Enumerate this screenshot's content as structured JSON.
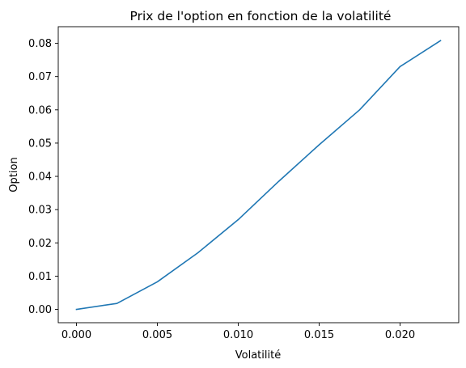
{
  "chart_data": {
    "type": "line",
    "title": "Prix de l'option en fonction de la volatilité",
    "xlabel": "Volatilité",
    "ylabel": "Option",
    "xlim": [
      -0.001125,
      0.023625
    ],
    "ylim": [
      -0.004,
      0.085
    ],
    "xticks": [
      "0.000",
      "0.005",
      "0.010",
      "0.015",
      "0.020"
    ],
    "xtick_values": [
      0.0,
      0.005,
      0.01,
      0.015,
      0.02
    ],
    "yticks": [
      "0.00",
      "0.01",
      "0.02",
      "0.03",
      "0.04",
      "0.05",
      "0.06",
      "0.07",
      "0.08"
    ],
    "ytick_values": [
      0.0,
      0.01,
      0.02,
      0.03,
      0.04,
      0.05,
      0.06,
      0.07,
      0.08
    ],
    "grid": false,
    "series": [
      {
        "color": "#1f77b4",
        "x": [
          0.0,
          0.0025,
          0.005,
          0.0075,
          0.01,
          0.0125,
          0.015,
          0.0175,
          0.02,
          0.0225
        ],
        "y": [
          0.0,
          0.0018,
          0.0083,
          0.017,
          0.027,
          0.0385,
          0.0495,
          0.06,
          0.073,
          0.0808
        ]
      }
    ]
  }
}
